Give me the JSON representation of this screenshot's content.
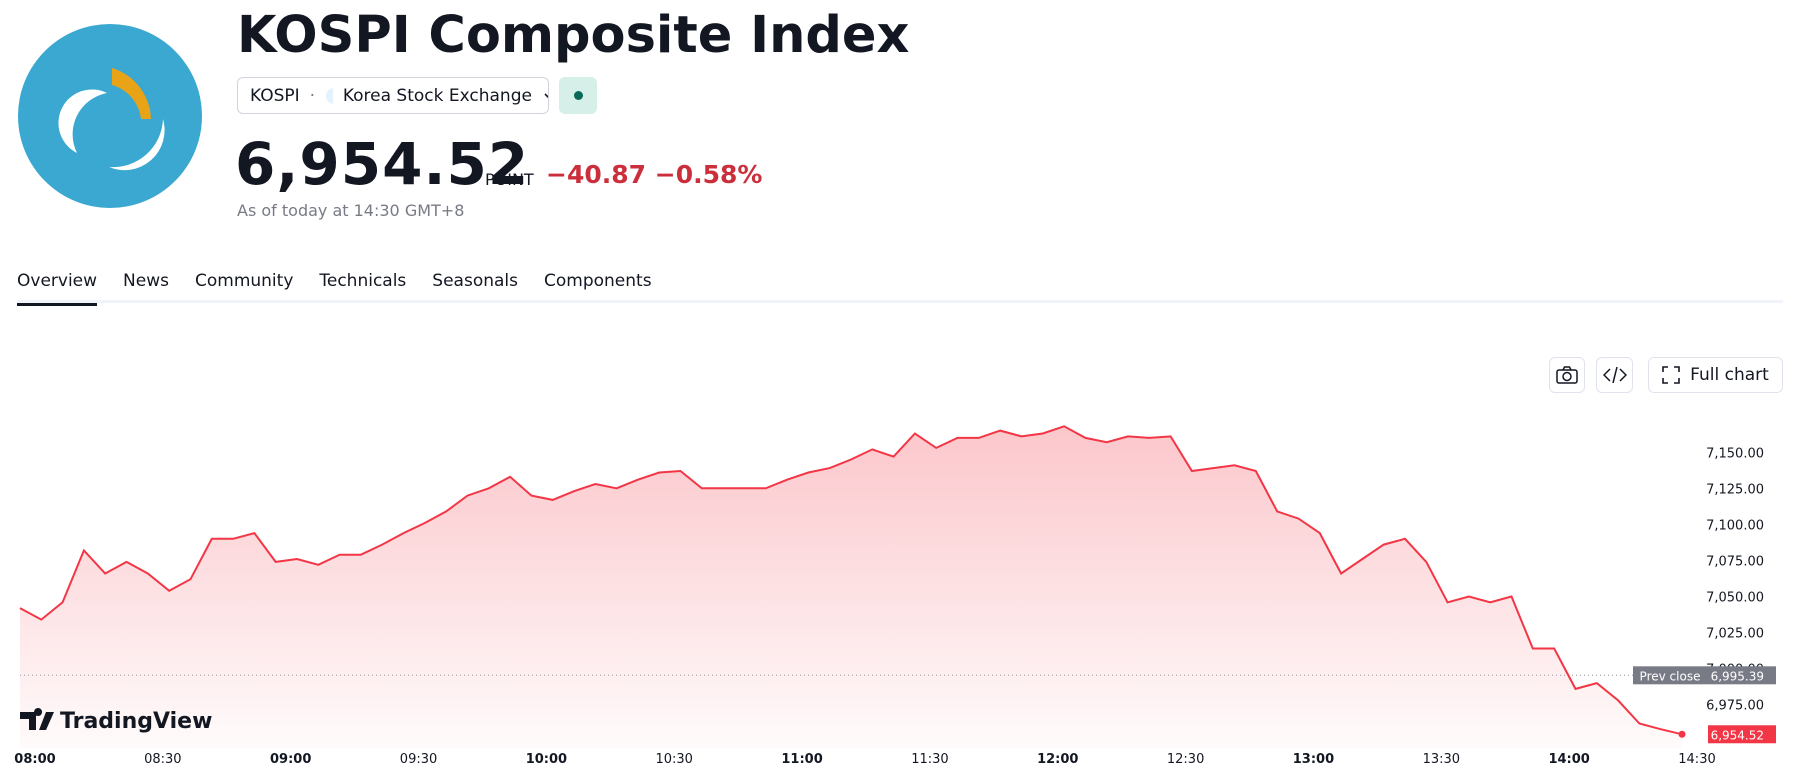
{
  "header": {
    "title": "KOSPI Composite Index",
    "ticker": "KOSPI",
    "exchange": "Korea Stock Exchange",
    "price": "6,954.52",
    "unit": "POINT",
    "change": "−40.87",
    "change_pct": "−0.58%",
    "as_of": "As of today at 14:30 GMT+8"
  },
  "tabs": [
    "Overview",
    "News",
    "Community",
    "Technicals",
    "Seasonals",
    "Components"
  ],
  "toolbar": {
    "full_chart": "Full chart"
  },
  "watermark": "TradingView",
  "chart_data": {
    "type": "line",
    "color": "#f23645",
    "x": [
      "08:00",
      "08:05",
      "08:10",
      "08:15",
      "08:20",
      "08:25",
      "08:30",
      "08:35",
      "08:40",
      "08:45",
      "08:50",
      "08:55",
      "09:00",
      "09:05",
      "09:10",
      "09:15",
      "09:20",
      "09:25",
      "09:30",
      "09:35",
      "09:40",
      "09:45",
      "09:50",
      "09:55",
      "10:00",
      "10:05",
      "10:10",
      "10:15",
      "10:20",
      "10:25",
      "10:30",
      "10:35",
      "10:40",
      "10:45",
      "10:50",
      "10:55",
      "11:00",
      "11:05",
      "11:10",
      "11:15",
      "11:20",
      "11:25",
      "11:30",
      "11:35",
      "11:40",
      "11:45",
      "11:50",
      "11:55",
      "12:00",
      "12:05",
      "12:10",
      "12:15",
      "12:20",
      "12:25",
      "12:30",
      "12:35",
      "12:40",
      "12:45",
      "12:50",
      "12:55",
      "13:00",
      "13:05",
      "13:10",
      "13:15",
      "13:20",
      "13:25",
      "13:30",
      "13:35",
      "13:40",
      "13:45",
      "13:50",
      "13:55",
      "14:00",
      "14:05",
      "14:10",
      "14:15",
      "14:20",
      "14:25",
      "14:30"
    ],
    "values": [
      7042,
      7034,
      7046,
      7082,
      7066,
      7074,
      7066,
      7054,
      7062,
      7090,
      7090,
      7094,
      7074,
      7076,
      7072,
      7079,
      7079,
      7086,
      7094,
      7101,
      7109,
      7120,
      7125,
      7133,
      7120,
      7117,
      7123,
      7128,
      7125,
      7131,
      7136,
      7137,
      7125,
      7125,
      7125,
      7125,
      7131,
      7136,
      7139,
      7145,
      7152,
      7147,
      7163,
      7153,
      7160,
      7160,
      7165,
      7161,
      7163,
      7168,
      7160,
      7157,
      7161,
      7160,
      7161,
      7137,
      7139,
      7141,
      7137,
      7109,
      7104,
      7094,
      7066,
      7076,
      7086,
      7090,
      7074,
      7046,
      7050,
      7046,
      7050,
      7014,
      7014,
      6986,
      6990,
      6978,
      6962,
      6958,
      6954.52
    ],
    "ylim": [
      6945,
      7180
    ],
    "yticks": [
      {
        "value": 6975,
        "label": "6,975.00"
      },
      {
        "value": 7000,
        "label": "7,000.00"
      },
      {
        "value": 7025,
        "label": "7,025.00"
      },
      {
        "value": 7050,
        "label": "7,050.00"
      },
      {
        "value": 7075,
        "label": "7,075.00"
      },
      {
        "value": 7100,
        "label": "7,100.00"
      },
      {
        "value": 7125,
        "label": "7,125.00"
      },
      {
        "value": 7150,
        "label": "7,150.00"
      }
    ],
    "xticks": [
      "08:00",
      "08:30",
      "09:00",
      "09:30",
      "10:00",
      "10:30",
      "11:00",
      "11:30",
      "12:00",
      "12:30",
      "13:00",
      "13:30",
      "14:00",
      "14:30"
    ],
    "prev_close": {
      "label": "Prev close",
      "value": 6995.39,
      "value_label": "6,995.39"
    },
    "last_label": {
      "value": 6954.52,
      "label": "6,954.52"
    }
  }
}
